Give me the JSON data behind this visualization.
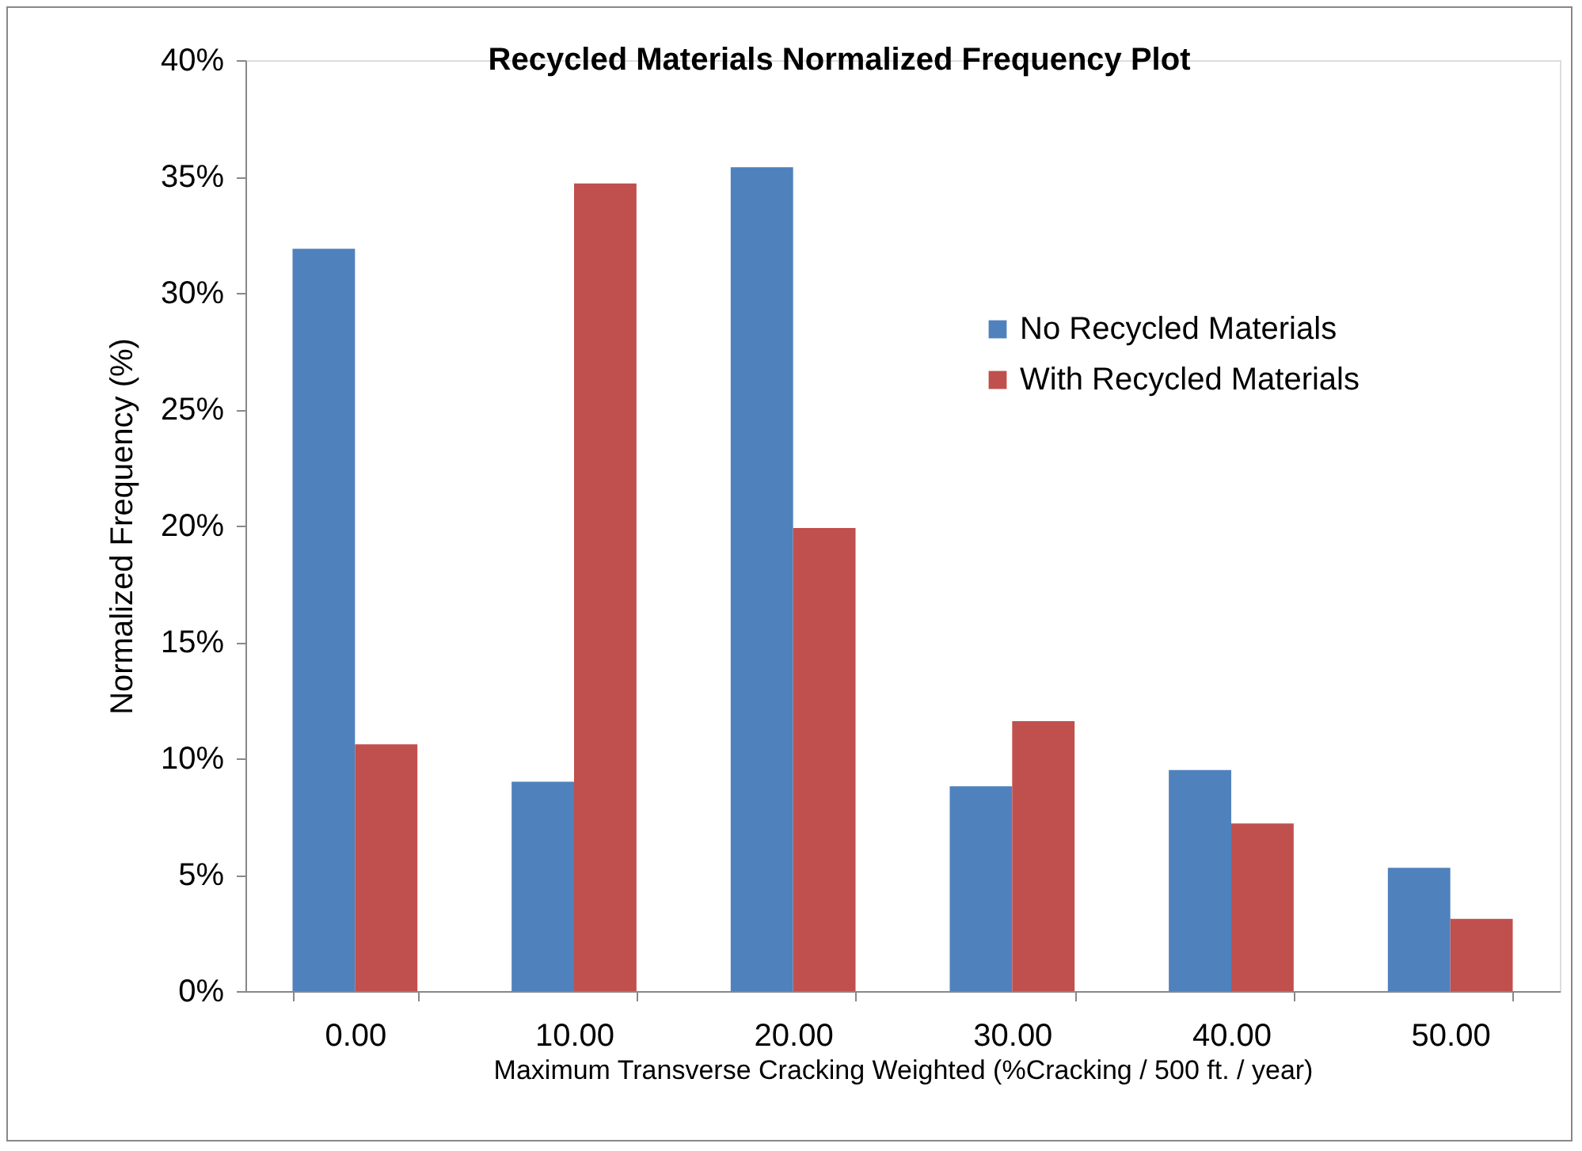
{
  "chart_data": {
    "type": "bar",
    "title": "Recycled Materials Normalized Frequency Plot",
    "xlabel": "Maximum  Transverse  Cracking  Weighted  (%Cracking  /  500 ft.  /  year)",
    "ylabel": "Normalized Frequency (%)",
    "categories": [
      "0.00",
      "10.00",
      "20.00",
      "30.00",
      "40.00",
      "50.00"
    ],
    "series": [
      {
        "name": "No Recycled Materials",
        "color": "#4f81bd",
        "values": [
          31.9,
          9.0,
          35.4,
          8.8,
          9.5,
          5.3
        ]
      },
      {
        "name": "With Recycled Materials",
        "color": "#c0504d",
        "values": [
          10.6,
          34.7,
          19.9,
          11.6,
          7.2,
          3.1
        ]
      }
    ],
    "ylim": [
      0,
      40
    ],
    "yticks": [
      {
        "value": 0,
        "label": "0%"
      },
      {
        "value": 5,
        "label": "5%"
      },
      {
        "value": 10,
        "label": "10%"
      },
      {
        "value": 15,
        "label": "15%"
      },
      {
        "value": 20,
        "label": "20%"
      },
      {
        "value": 25,
        "label": "25%"
      },
      {
        "value": 30,
        "label": "30%"
      },
      {
        "value": 35,
        "label": "35%"
      },
      {
        "value": 40,
        "label": "40%"
      }
    ],
    "grid": false,
    "legend": "right"
  }
}
